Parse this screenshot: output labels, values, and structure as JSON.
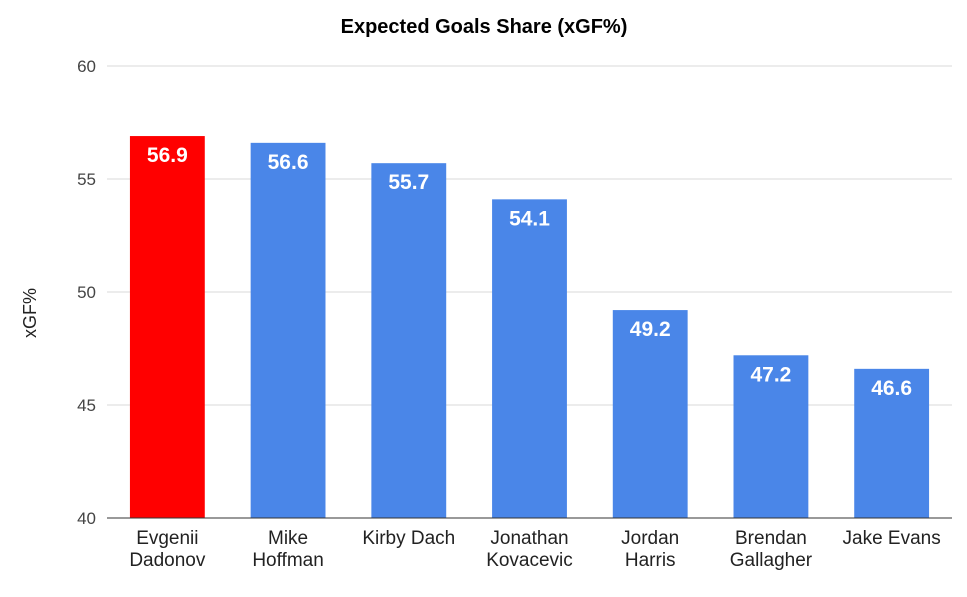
{
  "chart_data": {
    "type": "bar",
    "title": "Expected Goals Share (xGF%)",
    "xlabel": "",
    "ylabel": "xGF%",
    "ylim": [
      40,
      60
    ],
    "yticks": [
      40,
      45,
      50,
      55,
      60
    ],
    "grid": true,
    "legend": "none",
    "categories": [
      [
        "Evgenii",
        "Dadonov"
      ],
      [
        "Mike",
        "Hoffman"
      ],
      [
        "Kirby Dach"
      ],
      [
        "Jonathan",
        "Kovacevic"
      ],
      [
        "Jordan",
        "Harris"
      ],
      [
        "Brendan",
        "Gallagher"
      ],
      [
        "Jake Evans"
      ]
    ],
    "values": [
      56.9,
      56.6,
      55.7,
      54.1,
      49.2,
      47.2,
      46.6
    ],
    "data_labels": [
      "56.9",
      "56.6",
      "55.7",
      "54.1",
      "49.2",
      "47.2",
      "46.6"
    ],
    "colors": [
      "#ff0000",
      "#4a86e8",
      "#4a86e8",
      "#4a86e8",
      "#4a86e8",
      "#4a86e8",
      "#4a86e8"
    ]
  }
}
